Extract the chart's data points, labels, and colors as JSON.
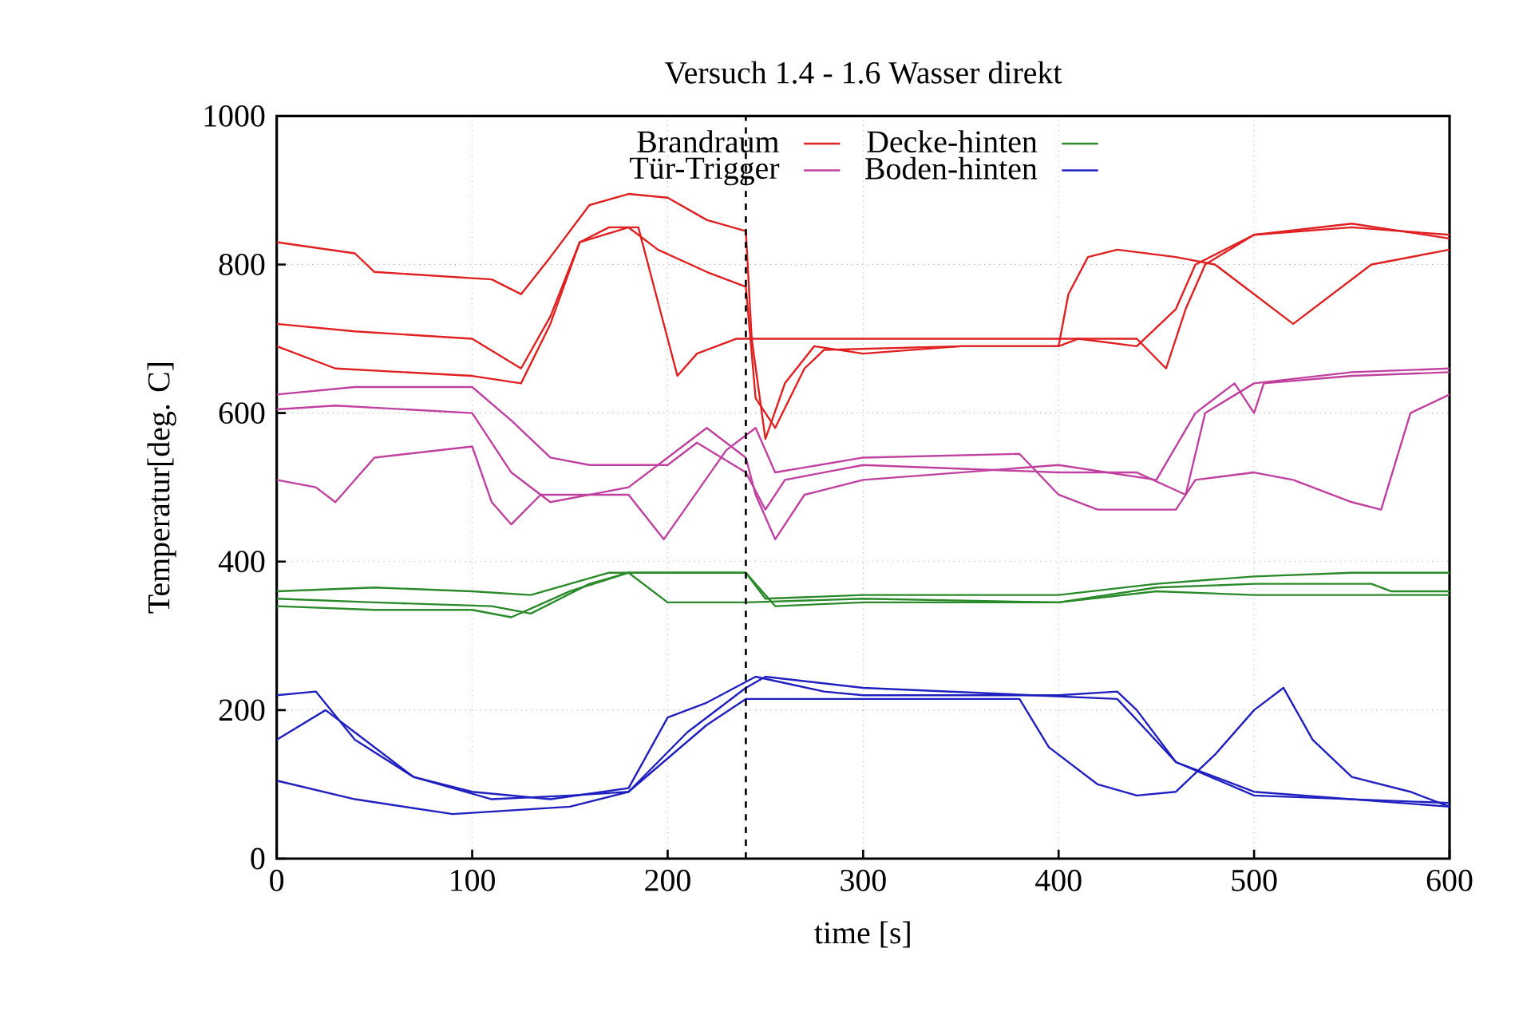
{
  "chart_data": {
    "type": "line",
    "title": "Versuch 1.4 - 1.6 Wasser direkt",
    "xlabel": "time [s]",
    "ylabel": "Temperatur[deg. C]",
    "xlim": [
      0,
      600
    ],
    "ylim": [
      0,
      1000
    ],
    "xticks": [
      0,
      100,
      200,
      300,
      400,
      500,
      600
    ],
    "yticks": [
      0,
      200,
      400,
      600,
      800,
      1000
    ],
    "grid": true,
    "legend": "top",
    "ref_lines": [
      {
        "axis": "x",
        "value": 240,
        "color": "#000000",
        "line_style": "dashed"
      }
    ],
    "series": [
      {
        "name": "Brandraum",
        "color": "#e02020",
        "x": [
          0,
          40,
          50,
          110,
          125,
          140,
          160,
          180,
          200,
          220,
          240,
          243,
          250,
          260,
          275,
          300,
          350,
          400,
          405,
          415,
          430,
          460,
          480,
          500,
          520,
          540,
          560,
          600
        ],
        "values": [
          830,
          815,
          790,
          780,
          760,
          810,
          880,
          895,
          890,
          860,
          845,
          700,
          565,
          640,
          690,
          680,
          690,
          690,
          760,
          810,
          820,
          810,
          800,
          760,
          720,
          760,
          800,
          820
        ]
      },
      {
        "color": "#e02020",
        "x": [
          0,
          40,
          100,
          125,
          140,
          155,
          170,
          185,
          195,
          205,
          215,
          235,
          260,
          300,
          400,
          420,
          440,
          455,
          465,
          475,
          500,
          550,
          600
        ],
        "values": [
          720,
          710,
          700,
          660,
          730,
          830,
          850,
          850,
          750,
          650,
          680,
          700,
          700,
          700,
          700,
          700,
          700,
          660,
          740,
          800,
          840,
          850,
          840
        ]
      },
      {
        "color": "#e02020",
        "x": [
          0,
          30,
          100,
          125,
          140,
          155,
          180,
          195,
          220,
          240,
          245,
          255,
          270,
          280,
          350,
          400,
          410,
          440,
          460,
          470,
          500,
          550,
          600
        ],
        "values": [
          690,
          660,
          650,
          640,
          720,
          830,
          850,
          820,
          790,
          770,
          620,
          580,
          660,
          685,
          690,
          690,
          700,
          690,
          740,
          800,
          840,
          855,
          835
        ]
      },
      {
        "name": "Tür-Trigger",
        "color": "#c040a0",
        "x": [
          0,
          40,
          100,
          120,
          140,
          160,
          200,
          215,
          240,
          250,
          260,
          300,
          400,
          440,
          465,
          475,
          500,
          550,
          600
        ],
        "values": [
          625,
          635,
          635,
          590,
          540,
          530,
          530,
          560,
          520,
          470,
          510,
          530,
          520,
          520,
          490,
          600,
          640,
          655,
          660
        ]
      },
      {
        "color": "#c040a0",
        "x": [
          0,
          30,
          100,
          120,
          140,
          180,
          200,
          220,
          240,
          245,
          255,
          270,
          300,
          400,
          450,
          470,
          490,
          500,
          505,
          550,
          600
        ],
        "values": [
          605,
          610,
          600,
          520,
          480,
          500,
          540,
          580,
          540,
          490,
          430,
          490,
          510,
          530,
          510,
          600,
          640,
          600,
          640,
          650,
          655
        ]
      },
      {
        "color": "#c040a0",
        "x": [
          0,
          20,
          30,
          50,
          100,
          110,
          120,
          135,
          180,
          198,
          230,
          245,
          255,
          300,
          380,
          400,
          420,
          460,
          470,
          500,
          520,
          550,
          565,
          580,
          600
        ],
        "values": [
          510,
          500,
          480,
          540,
          555,
          480,
          450,
          490,
          490,
          430,
          550,
          580,
          520,
          540,
          545,
          490,
          470,
          470,
          510,
          520,
          510,
          480,
          470,
          600,
          625
        ]
      },
      {
        "name": "Decke-hinten",
        "color": "#2a8a2a",
        "x": [
          0,
          50,
          100,
          130,
          170,
          200,
          240,
          250,
          300,
          400,
          450,
          500,
          550,
          600
        ],
        "values": [
          360,
          365,
          360,
          355,
          385,
          385,
          385,
          350,
          355,
          355,
          370,
          380,
          385,
          385
        ]
      },
      {
        "color": "#2a8a2a",
        "x": [
          0,
          50,
          110,
          130,
          160,
          180,
          200,
          240,
          300,
          400,
          450,
          500,
          560,
          570,
          600
        ],
        "values": [
          350,
          345,
          340,
          330,
          370,
          385,
          345,
          345,
          350,
          345,
          365,
          370,
          370,
          360,
          360
        ]
      },
      {
        "color": "#2a8a2a",
        "x": [
          0,
          50,
          100,
          120,
          150,
          180,
          240,
          255,
          300,
          400,
          450,
          500,
          600
        ],
        "values": [
          340,
          335,
          335,
          325,
          360,
          385,
          385,
          340,
          345,
          345,
          360,
          355,
          355
        ]
      },
      {
        "name": "Boden-hinten",
        "color": "#2020c0",
        "x": [
          0,
          20,
          40,
          70,
          100,
          140,
          180,
          200,
          220,
          245,
          280,
          300,
          400,
          430,
          440,
          460,
          500,
          600
        ],
        "values": [
          220,
          225,
          160,
          110,
          90,
          80,
          95,
          190,
          210,
          245,
          225,
          220,
          220,
          225,
          200,
          130,
          90,
          70
        ]
      },
      {
        "color": "#2020c0",
        "x": [
          0,
          25,
          40,
          70,
          110,
          150,
          180,
          210,
          240,
          250,
          300,
          430,
          460,
          500,
          600
        ],
        "values": [
          160,
          200,
          170,
          110,
          80,
          85,
          90,
          170,
          230,
          245,
          230,
          215,
          130,
          85,
          75
        ]
      },
      {
        "color": "#2020c0",
        "x": [
          0,
          40,
          90,
          150,
          180,
          220,
          240,
          260,
          380,
          395,
          420,
          440,
          460,
          480,
          500,
          515,
          530,
          550,
          580,
          600
        ],
        "values": [
          105,
          80,
          60,
          70,
          90,
          180,
          215,
          215,
          215,
          150,
          100,
          85,
          90,
          140,
          200,
          230,
          160,
          110,
          90,
          70
        ]
      }
    ]
  }
}
